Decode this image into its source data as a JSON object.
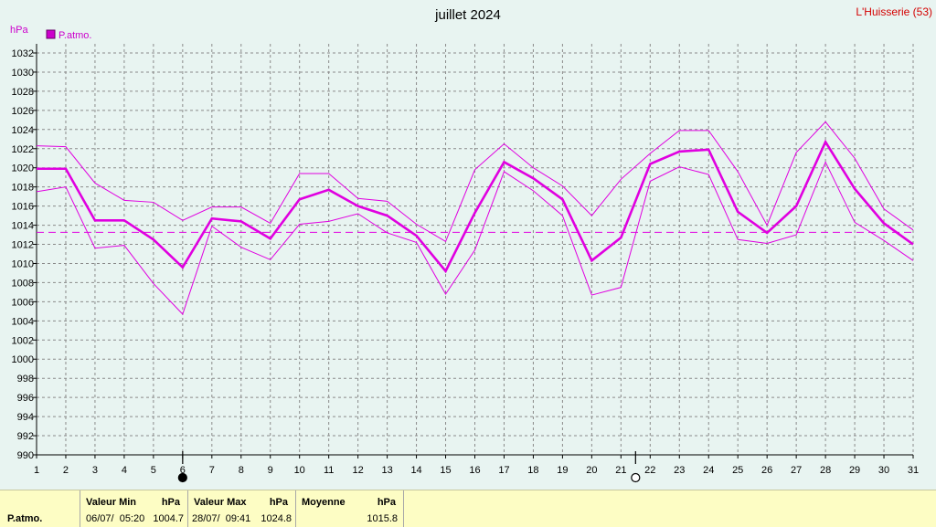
{
  "header": {
    "title": "juillet 2024",
    "station": "L'Huisserie (53)",
    "unit": "hPa",
    "legend_label": "P.atmo."
  },
  "colors": {
    "series": "#e000e0",
    "grid": "#8a8a8a",
    "background": "#e8f4f1",
    "stats_background": "#fdfdc4"
  },
  "chart_data": {
    "type": "line",
    "title": "juillet 2024",
    "ylabel": "hPa",
    "xlabel": "",
    "xlim": [
      1,
      31
    ],
    "ylim": [
      990,
      1032
    ],
    "y_ticks": [
      990,
      992,
      994,
      996,
      998,
      1000,
      1002,
      1004,
      1006,
      1008,
      1010,
      1012,
      1014,
      1016,
      1018,
      1020,
      1022,
      1024,
      1026,
      1028,
      1030,
      1032
    ],
    "x": [
      1,
      2,
      3,
      4,
      5,
      6,
      7,
      8,
      9,
      10,
      11,
      12,
      13,
      14,
      15,
      16,
      17,
      18,
      19,
      20,
      21,
      22,
      23,
      24,
      25,
      26,
      27,
      28,
      29,
      30,
      31
    ],
    "grid": true,
    "legend_position": "top-left",
    "series": [
      {
        "name": "P.atmo.",
        "role": "mean",
        "values": [
          1019.9,
          1019.9,
          1014.5,
          1014.5,
          1012.5,
          1009.6,
          1014.7,
          1014.4,
          1012.6,
          1016.7,
          1017.7,
          1016.0,
          1015.0,
          1012.9,
          1009.2,
          1015.3,
          1020.6,
          1018.9,
          1016.7,
          1010.3,
          1012.7,
          1020.4,
          1021.7,
          1021.9,
          1015.4,
          1013.2,
          1016.0,
          1022.7,
          1017.8,
          1014.2,
          1012.0
        ]
      },
      {
        "role": "max",
        "values": [
          1022.3,
          1022.2,
          1018.4,
          1016.6,
          1016.4,
          1014.5,
          1015.9,
          1015.9,
          1014.2,
          1019.4,
          1019.4,
          1016.8,
          1016.5,
          1014.1,
          1012.3,
          1019.8,
          1022.5,
          1020.0,
          1018.1,
          1015.0,
          1018.8,
          1021.5,
          1023.9,
          1023.9,
          1019.6,
          1014.0,
          1021.6,
          1024.8,
          1021.0,
          1015.7,
          1013.5
        ]
      },
      {
        "role": "min",
        "values": [
          1017.5,
          1018.0,
          1011.6,
          1011.9,
          1007.9,
          1004.7,
          1013.9,
          1011.7,
          1010.4,
          1014.1,
          1014.4,
          1015.2,
          1013.2,
          1012.2,
          1006.8,
          1011.4,
          1019.6,
          1017.6,
          1015.0,
          1006.7,
          1007.5,
          1018.6,
          1020.1,
          1019.3,
          1012.5,
          1012.1,
          1013.0,
          1020.6,
          1014.3,
          1012.4,
          1010.3
        ]
      }
    ],
    "reference_line": {
      "value": 1013.25,
      "style": "dashed"
    },
    "moon_phases": [
      {
        "day": 6,
        "phase": "new-moon"
      },
      {
        "day": 21.5,
        "phase": "full-moon"
      }
    ]
  },
  "stats": {
    "row_label": "P.atmo.",
    "min": {
      "label": "Valeur Min",
      "unit": "hPa",
      "when": "06/07/  05:20",
      "value": "1004.7"
    },
    "max": {
      "label": "Valeur Max",
      "unit": "hPa",
      "when": "28/07/  09:41",
      "value": "1024.8"
    },
    "mean": {
      "label": "Moyenne",
      "unit": "hPa",
      "value": "1015.8"
    }
  }
}
